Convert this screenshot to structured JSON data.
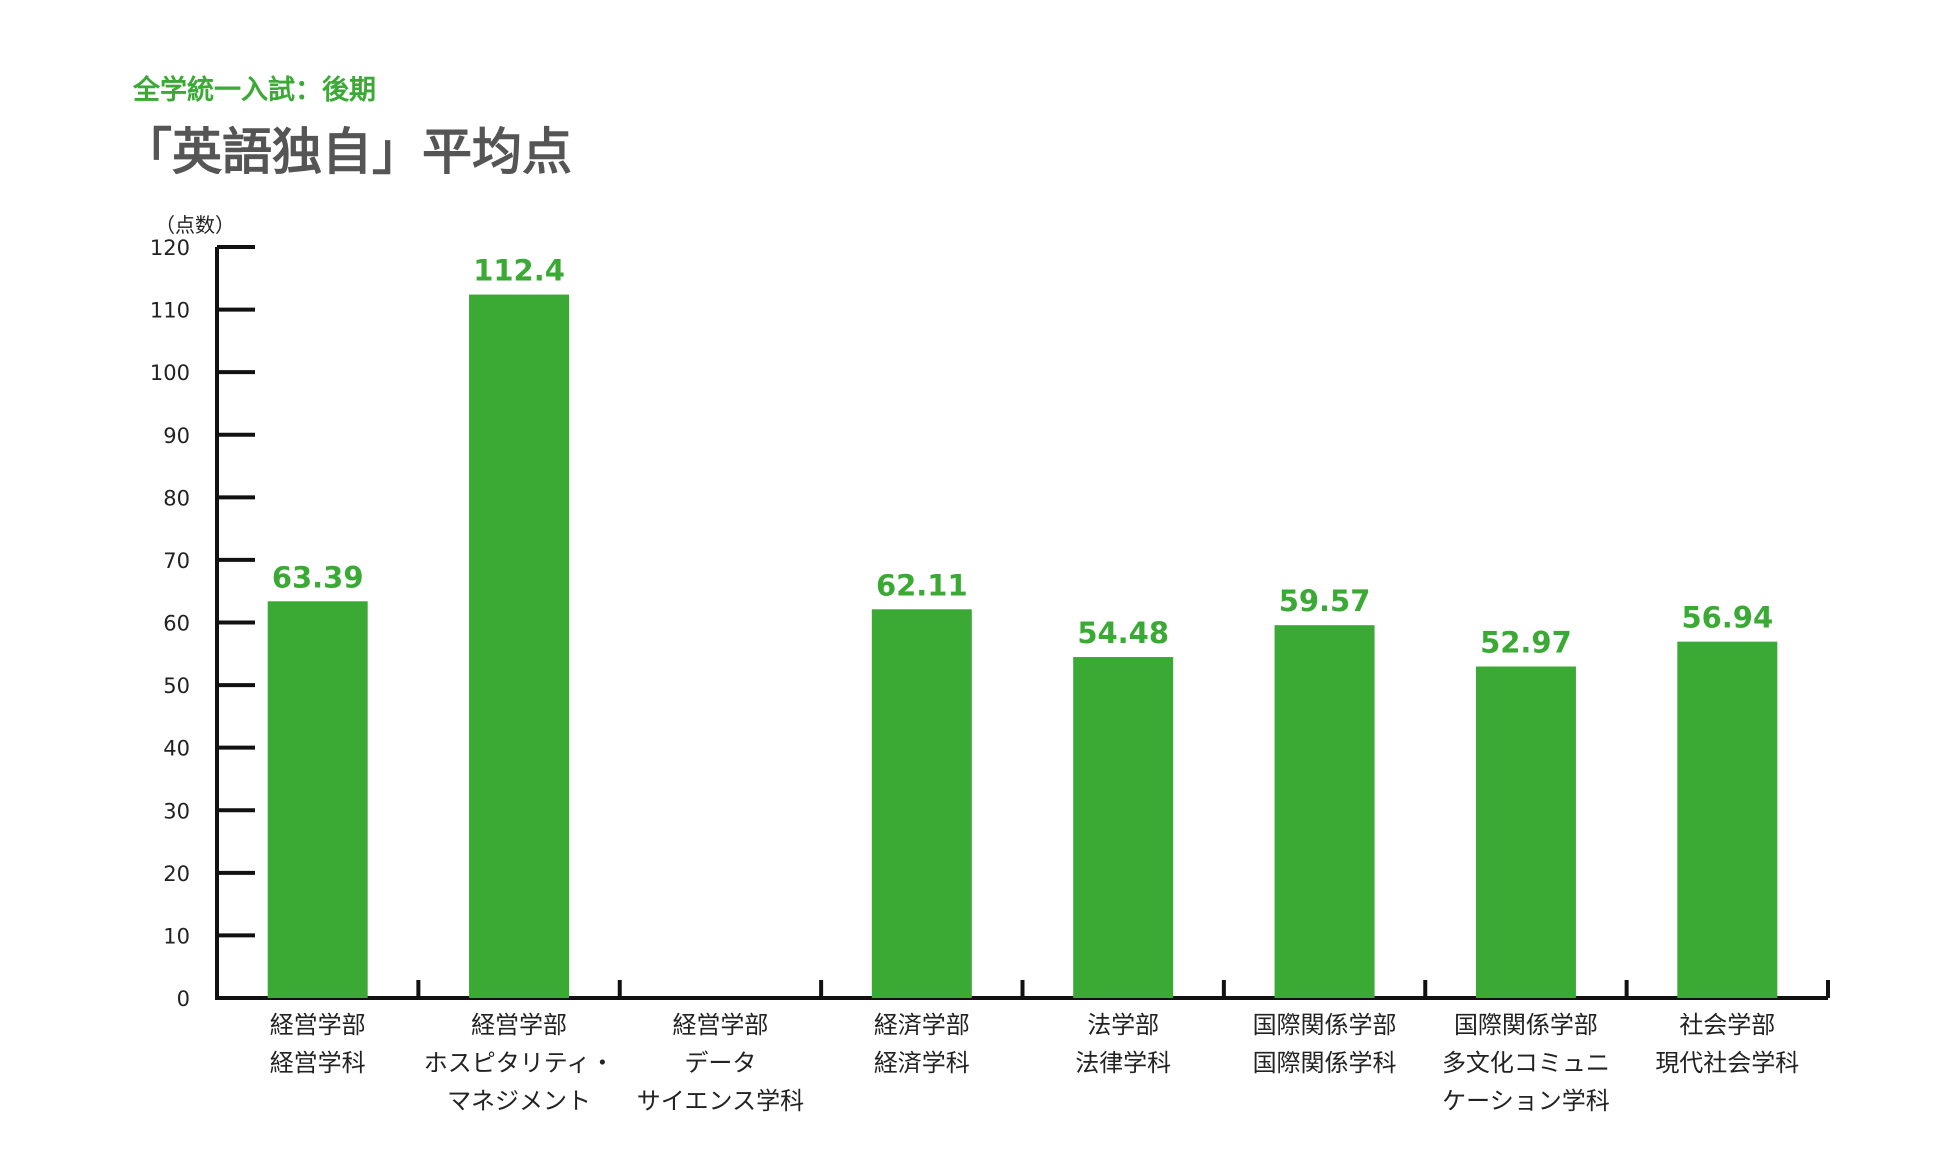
{
  "header": {
    "subtitle": "全学統一入試：後期",
    "title": "「英語独自」平均点"
  },
  "chart_data": {
    "type": "bar",
    "title": "「英語独自」平均点",
    "subtitle": "全学統一入試：後期",
    "ylabel": "（点数）",
    "xlabel": "",
    "ylim": [
      0,
      120
    ],
    "yticks": [
      0,
      10,
      20,
      30,
      40,
      50,
      60,
      70,
      80,
      90,
      100,
      110,
      120
    ],
    "grid": false,
    "bar_color": "#3aaa35",
    "value_label_color": "#3aaa35",
    "categories": [
      [
        "経営学部",
        "経営学科"
      ],
      [
        "経営学部",
        "ホスピタリティ・",
        "マネジメント"
      ],
      [
        "経営学部",
        "データ",
        "サイエンス学科"
      ],
      [
        "経済学部",
        "経済学科"
      ],
      [
        "法学部",
        "法律学科"
      ],
      [
        "国際関係学部",
        "国際関係学科"
      ],
      [
        "国際関係学部",
        "多文化コミュニ",
        "ケーション学科"
      ],
      [
        "社会学部",
        "現代社会学科"
      ]
    ],
    "values": [
      63.39,
      112.4,
      null,
      62.11,
      54.48,
      59.57,
      52.97,
      56.94
    ],
    "value_labels": [
      "63.39",
      "112.4",
      "",
      "62.11",
      "54.48",
      "59.57",
      "52.97",
      "56.94"
    ]
  }
}
